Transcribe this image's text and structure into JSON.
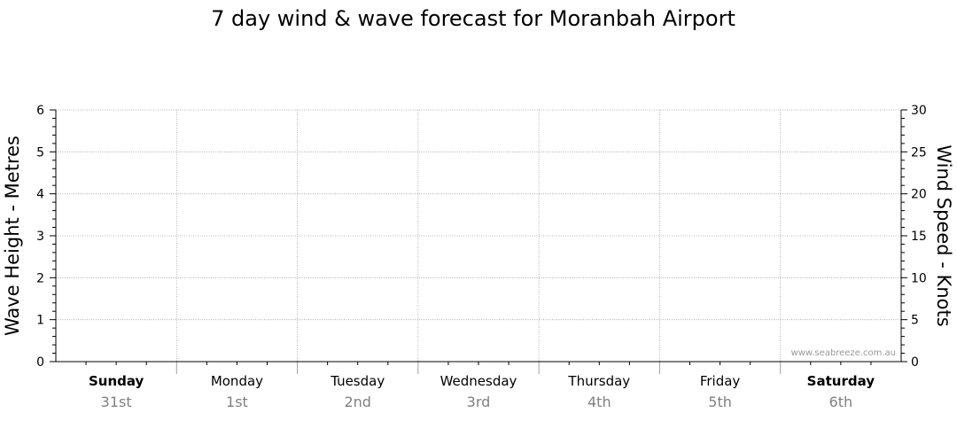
{
  "chart_data": {
    "type": "line",
    "title": "7 day wind & wave forecast for Moranbah Airport",
    "ylabel_left": "Wave Height - Metres",
    "ylabel_right": "Wind Speed - Knots",
    "ylim_left": [
      0,
      6
    ],
    "ylim_right": [
      0,
      30
    ],
    "yticks_left": [
      "0",
      "1",
      "2",
      "3",
      "4",
      "5",
      "6"
    ],
    "yticks_right": [
      "0",
      "5",
      "10",
      "15",
      "20",
      "25",
      "30"
    ],
    "days": [
      {
        "name": "Sunday",
        "date": "31st",
        "bold": true
      },
      {
        "name": "Monday",
        "date": "1st",
        "bold": false
      },
      {
        "name": "Tuesday",
        "date": "2nd",
        "bold": false
      },
      {
        "name": "Wednesday",
        "date": "3rd",
        "bold": false
      },
      {
        "name": "Thursday",
        "date": "4th",
        "bold": false
      },
      {
        "name": "Friday",
        "date": "5th",
        "bold": false
      },
      {
        "name": "Saturday",
        "date": "6th",
        "bold": true
      }
    ],
    "series": [],
    "grid": true,
    "watermark": "www.seabreeze.com.au",
    "colors": {
      "grid": "#a0a0a0",
      "axis": "#000000",
      "date_text": "#808080",
      "watermark": "#999999"
    }
  }
}
